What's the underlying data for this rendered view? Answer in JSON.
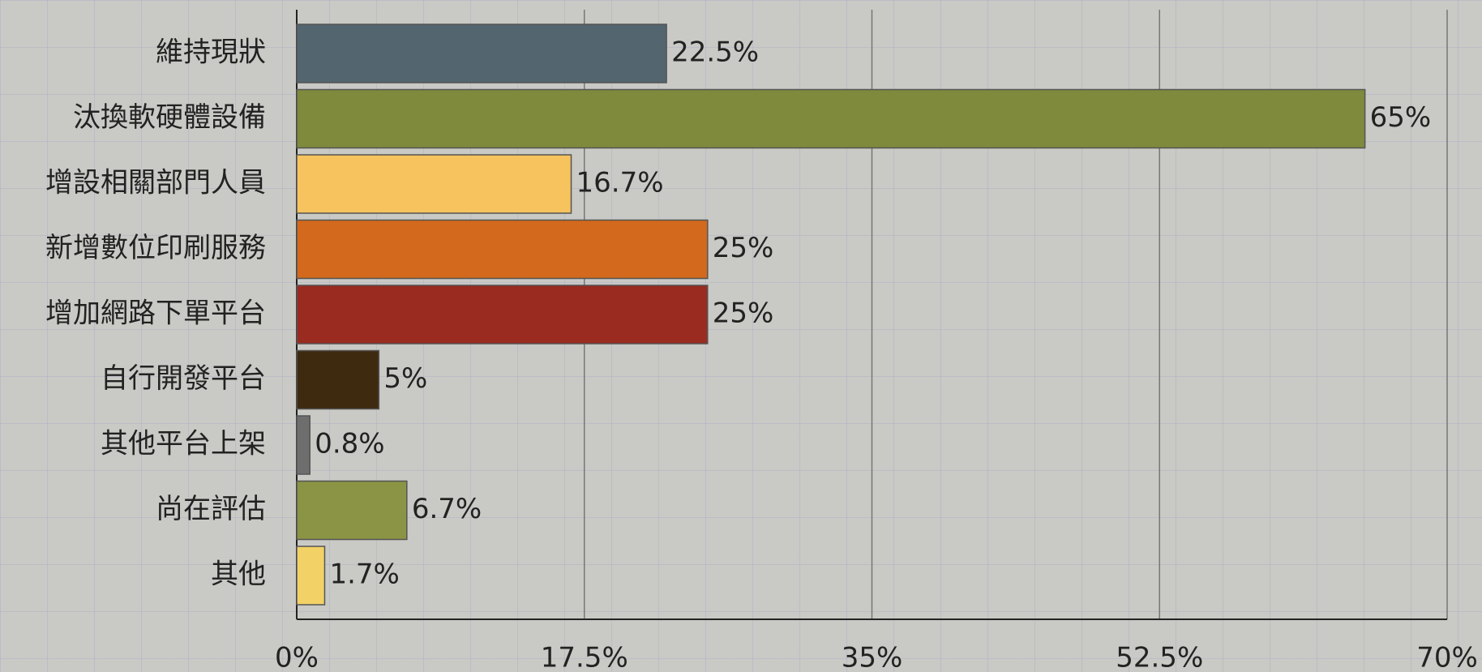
{
  "chart_data": {
    "type": "bar",
    "orientation": "horizontal",
    "categories": [
      "維持現狀",
      "汰換軟硬體設備",
      "增設相關部門人員",
      "新增數位印刷服務",
      "增加網路下單平台",
      "自行開發平台",
      "其他平台上架",
      "尚在評估",
      "其他"
    ],
    "values": [
      22.5,
      65,
      16.7,
      25,
      25,
      5,
      0.8,
      6.7,
      1.7
    ],
    "value_labels": [
      "22.5%",
      "65%",
      "16.7%",
      "25%",
      "25%",
      "5%",
      "0.8%",
      "6.7%",
      "1.7%"
    ],
    "colors": [
      "#53656e",
      "#7f8a3c",
      "#f6c35e",
      "#d2691c",
      "#992b20",
      "#3e2a0f",
      "#6e6e6e",
      "#8b9444",
      "#f2d266"
    ],
    "xlim": [
      0,
      70
    ],
    "xticks": [
      {
        "value": 0,
        "label": "0%"
      },
      {
        "value": 17.5,
        "label": "17.5%"
      },
      {
        "value": 35,
        "label": "35%"
      },
      {
        "value": 52.5,
        "label": "52.5%"
      },
      {
        "value": 70,
        "label": "70%"
      }
    ],
    "grid": true
  }
}
